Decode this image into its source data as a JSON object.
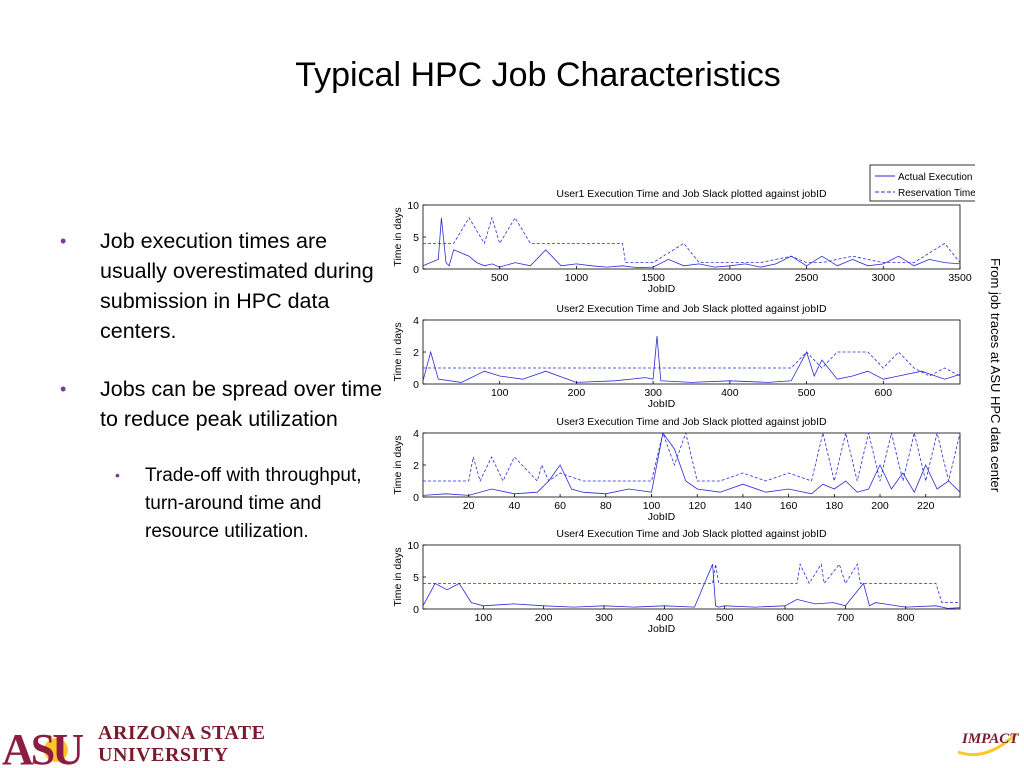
{
  "slide": {
    "title": "Typical HPC Job Characteristics",
    "bullets": [
      {
        "text": "Job execution times are usually overestimated during submission in HPC data centers."
      },
      {
        "text": "Jobs can be spread over time to reduce peak utilization",
        "sub": "Trade-off with throughput, turn-around time and resource utilization."
      }
    ],
    "side_note": "From job traces at ASU HPC data center",
    "footer": {
      "org_line1": "ARIZONA STATE",
      "org_line2": "UNIVERSITY",
      "logo_text": "ASU",
      "impact_text": "IMPACT"
    }
  },
  "colors": {
    "series": "#2b2bd6",
    "frame": "#000000",
    "asu_maroon": "#8c1d40",
    "asu_gold": "#ffc627",
    "bullet": "#7a3a9a"
  },
  "legend": {
    "entries": [
      "Actual Execution Time",
      "Reservation Time"
    ],
    "placement": "top-right",
    "styles": [
      "solid",
      "dashed"
    ]
  },
  "chart_data": [
    {
      "type": "line",
      "title": "User1 Execution Time and Job Slack plotted against jobID",
      "xlabel": "JobID",
      "ylabel": "Time in days",
      "xlim": [
        0,
        3500
      ],
      "ylim": [
        0,
        10
      ],
      "xticks": [
        500,
        1000,
        1500,
        2000,
        2500,
        3000,
        3500
      ],
      "yticks": [
        0,
        5,
        10
      ],
      "series": [
        {
          "name": "Actual Execution Time",
          "style": "solid",
          "x": [
            0,
            100,
            120,
            150,
            170,
            200,
            300,
            350,
            400,
            450,
            500,
            600,
            700,
            800,
            900,
            1000,
            1100,
            1200,
            1300,
            1400,
            1500,
            1600,
            1700,
            1800,
            1900,
            2000,
            2100,
            2200,
            2300,
            2400,
            2500,
            2600,
            2700,
            2800,
            2900,
            3000,
            3100,
            3200,
            3300,
            3400,
            3500
          ],
          "y": [
            0.5,
            1.5,
            8,
            1,
            0.5,
            3,
            2,
            1,
            0.5,
            0.8,
            0.3,
            1,
            0.5,
            3,
            0.5,
            0.8,
            0.5,
            0.3,
            0.5,
            0.2,
            0.3,
            1.5,
            0.5,
            0.8,
            0.3,
            0.5,
            0.8,
            0.3,
            0.8,
            2,
            0.5,
            2,
            0.5,
            1.5,
            0.5,
            0.8,
            2,
            0.5,
            1.5,
            1,
            0.8
          ]
        },
        {
          "name": "Reservation Time",
          "style": "dashed",
          "x": [
            0,
            100,
            200,
            300,
            400,
            450,
            500,
            600,
            700,
            800,
            900,
            1000,
            1100,
            1200,
            1300,
            1320,
            1400,
            1500,
            1700,
            1800,
            2000,
            2200,
            2400,
            2500,
            2600,
            2800,
            3000,
            3200,
            3400,
            3500
          ],
          "y": [
            4,
            4,
            4,
            8,
            4,
            8,
            4,
            8,
            4,
            4,
            4,
            4,
            4,
            4,
            4,
            1,
            1,
            1,
            4,
            1,
            1,
            1,
            2,
            1,
            1,
            2,
            1,
            1,
            4,
            1
          ]
        }
      ]
    },
    {
      "type": "line",
      "title": "User2 Execution Time and Job Slack plotted against jobID",
      "xlabel": "JobID",
      "ylabel": "Time in days",
      "xlim": [
        0,
        700
      ],
      "ylim": [
        0,
        4
      ],
      "xticks": [
        100,
        200,
        300,
        400,
        500,
        600
      ],
      "yticks": [
        0,
        2,
        4
      ],
      "series": [
        {
          "name": "Actual Execution Time",
          "style": "solid",
          "x": [
            0,
            10,
            20,
            50,
            80,
            100,
            130,
            160,
            200,
            250,
            290,
            300,
            305,
            310,
            350,
            400,
            450,
            480,
            500,
            510,
            520,
            540,
            560,
            580,
            600,
            620,
            650,
            680,
            700
          ],
          "y": [
            0.2,
            2,
            0.3,
            0.1,
            0.8,
            0.5,
            0.3,
            0.8,
            0.1,
            0.2,
            0.4,
            0.3,
            3,
            0.2,
            0.1,
            0.2,
            0.1,
            0.2,
            2,
            0.5,
            1.5,
            0.3,
            0.5,
            0.8,
            0.3,
            0.5,
            0.8,
            0.3,
            0.6
          ]
        },
        {
          "name": "Reservation Time",
          "style": "dashed",
          "x": [
            0,
            20,
            40,
            100,
            200,
            300,
            400,
            480,
            500,
            520,
            540,
            560,
            580,
            600,
            620,
            640,
            660,
            680,
            700
          ],
          "y": [
            1,
            1,
            1,
            1,
            1,
            1,
            1,
            1,
            2,
            1,
            2,
            2,
            2,
            1,
            2,
            1,
            0.5,
            1,
            0.5
          ]
        }
      ]
    },
    {
      "type": "line",
      "title": "User3 Execution Time and Job Slack plotted against jobID",
      "xlabel": "JobID",
      "ylabel": "Time in days",
      "xlim": [
        0,
        235
      ],
      "ylim": [
        0,
        4
      ],
      "xticks": [
        20,
        40,
        60,
        80,
        100,
        120,
        140,
        160,
        180,
        200,
        220
      ],
      "yticks": [
        0,
        2,
        4
      ],
      "series": [
        {
          "name": "Actual Execution Time",
          "style": "solid",
          "x": [
            0,
            10,
            20,
            30,
            40,
            50,
            55,
            60,
            65,
            70,
            80,
            90,
            100,
            105,
            110,
            115,
            120,
            130,
            140,
            150,
            160,
            170,
            175,
            180,
            185,
            190,
            195,
            200,
            205,
            210,
            215,
            220,
            225,
            230,
            235
          ],
          "y": [
            0.1,
            0.2,
            0.1,
            0.5,
            0.2,
            0.3,
            1,
            2,
            0.5,
            0.3,
            0.2,
            0.5,
            0.3,
            4,
            3,
            1,
            0.5,
            0.3,
            0.8,
            0.3,
            0.5,
            0.2,
            0.8,
            0.5,
            1,
            0.3,
            0.5,
            2,
            0.5,
            1.5,
            0.3,
            2,
            0.5,
            1,
            0.3
          ]
        },
        {
          "name": "Reservation Time",
          "style": "dashed",
          "x": [
            0,
            10,
            20,
            22,
            25,
            30,
            35,
            40,
            50,
            52,
            55,
            60,
            70,
            80,
            90,
            100,
            105,
            110,
            115,
            120,
            130,
            140,
            150,
            160,
            170,
            175,
            180,
            185,
            190,
            195,
            200,
            205,
            210,
            215,
            220,
            225,
            230,
            235
          ],
          "y": [
            1,
            1,
            1,
            2.5,
            1,
            2.5,
            1,
            2.5,
            1,
            2,
            1,
            1.5,
            1,
            1,
            1,
            1,
            4,
            2,
            4,
            1,
            1,
            1.5,
            1,
            1.5,
            1,
            4,
            1,
            4,
            1,
            4,
            1,
            4,
            1,
            4,
            1,
            4,
            1,
            4
          ]
        }
      ]
    },
    {
      "type": "line",
      "title": "User4 Execution Time and Job Slack plotted against jobID",
      "xlabel": "JobID",
      "ylabel": "Time in days",
      "xlim": [
        0,
        890
      ],
      "ylim": [
        0,
        10
      ],
      "xticks": [
        100,
        200,
        300,
        400,
        500,
        600,
        700,
        800
      ],
      "yticks": [
        0,
        5,
        10
      ],
      "series": [
        {
          "name": "Actual Execution Time",
          "style": "solid",
          "x": [
            0,
            20,
            40,
            60,
            80,
            100,
            150,
            200,
            250,
            300,
            350,
            400,
            450,
            480,
            485,
            490,
            500,
            550,
            600,
            620,
            650,
            680,
            700,
            730,
            740,
            750,
            800,
            850,
            870,
            890
          ],
          "y": [
            0.5,
            4,
            3,
            4,
            1,
            0.5,
            0.8,
            0.5,
            0.3,
            0.5,
            0.3,
            0.5,
            0.3,
            7,
            0.5,
            0.3,
            0.5,
            0.3,
            0.5,
            1.5,
            0.8,
            1,
            0.5,
            4,
            0.5,
            1,
            0.3,
            0.5,
            0.1,
            0.2
          ]
        },
        {
          "name": "Reservation Time",
          "style": "dashed",
          "x": [
            0,
            50,
            100,
            200,
            300,
            400,
            480,
            485,
            490,
            600,
            620,
            625,
            640,
            660,
            665,
            690,
            700,
            720,
            725,
            740,
            850,
            860,
            870,
            890
          ],
          "y": [
            4,
            4,
            4,
            4,
            4,
            4,
            4,
            7,
            4,
            4,
            4,
            7,
            4,
            7,
            4,
            7,
            4,
            7,
            4,
            4,
            4,
            1,
            1,
            1
          ]
        }
      ]
    }
  ]
}
